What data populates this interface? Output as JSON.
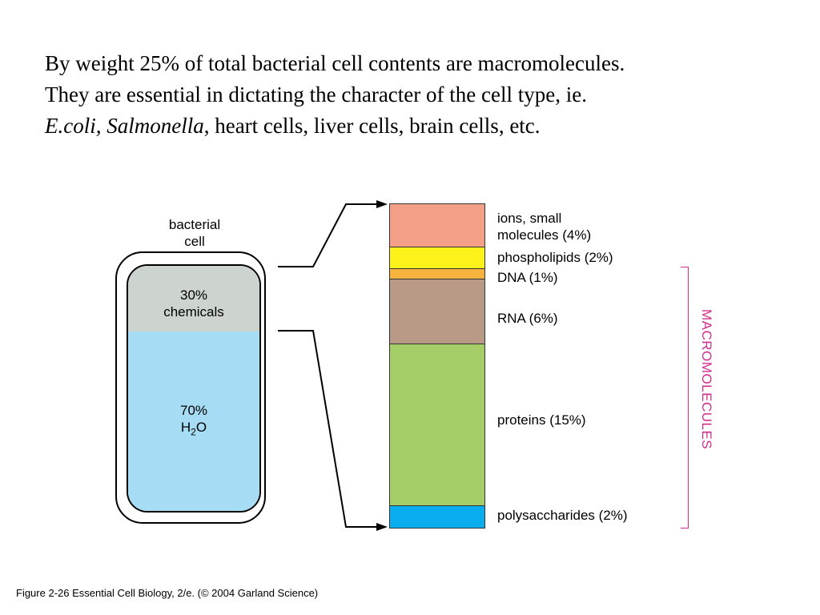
{
  "intro": {
    "line1": "By weight 25% of total bacterial cell contents are macromolecules.",
    "line2": "They are essential in dictating the character of the cell type, ie.",
    "line3_italic": "E.coli, Salmonella",
    "line3_rest": ", heart cells, liver cells, brain cells, etc."
  },
  "bacterial_cell": {
    "caption_line1": "bacterial",
    "caption_line2": "cell",
    "chemicals_percent": "30%",
    "chemicals_label": "chemicals",
    "water_percent": "70%",
    "water_formula": "H",
    "water_subscript": "2",
    "water_suffix": "O",
    "chemicals_color": "#cdd3cf",
    "water_color": "#a7dcf5"
  },
  "chemicals_breakdown": [
    {
      "label_line1": "ions, small",
      "label_line2": "molecules (4%)",
      "percent": 4,
      "color": "#f4a089"
    },
    {
      "label_line1": "phospholipids (2%)",
      "percent": 2,
      "color": "#fdf21a"
    },
    {
      "label_line1": "DNA (1%)",
      "percent": 1,
      "color": "#f6b33e"
    },
    {
      "label_line1": "RNA (6%)",
      "percent": 6,
      "color": "#b89a86"
    },
    {
      "label_line1": "proteins (15%)",
      "percent": 15,
      "color": "#a6ce68"
    },
    {
      "label_line1": "polysaccharides (2%)",
      "percent": 2,
      "color": "#0aaeef"
    }
  ],
  "macromolecules_label": "MACROMOLECULES",
  "macromolecules_color": "#d12d8f",
  "footer": "Figure 2-26   Essential Cell Biology, 2/e. (© 2004 Garland Science)"
}
